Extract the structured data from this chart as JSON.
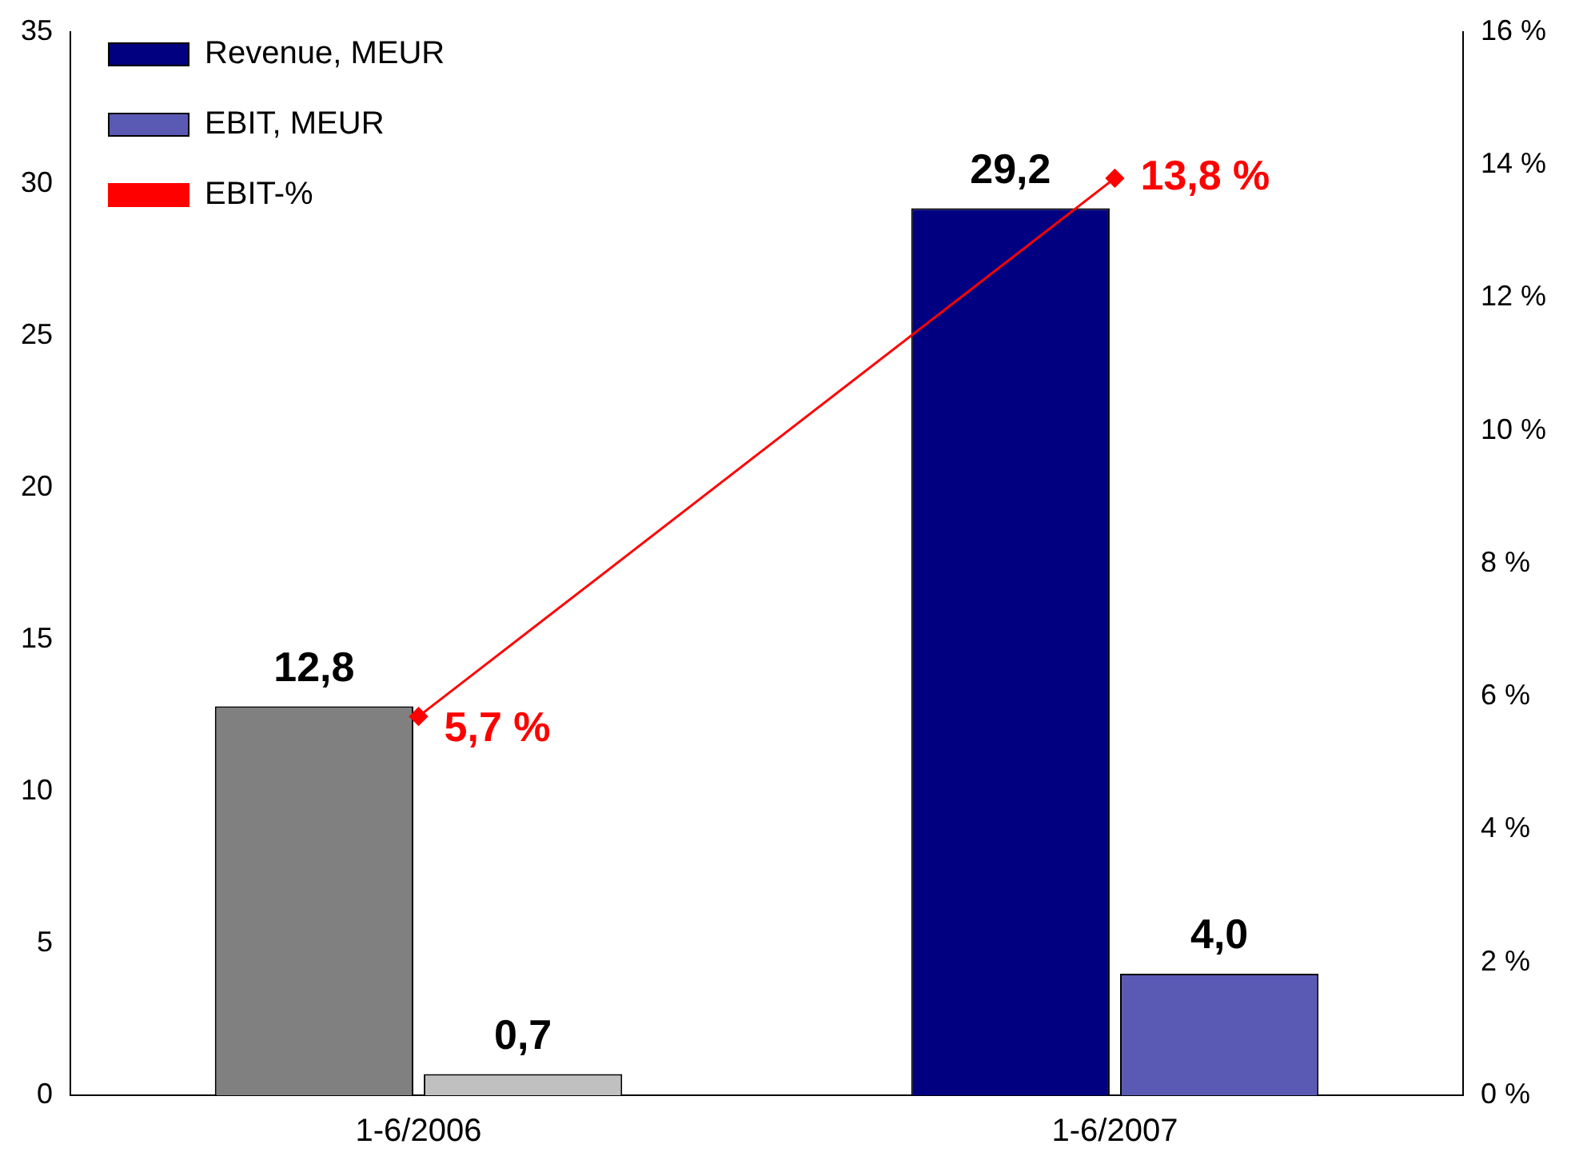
{
  "chart_data": {
    "type": "bar",
    "categories": [
      "1-6/2006",
      "1-6/2007"
    ],
    "series": [
      {
        "name": "Revenue, MEUR",
        "color": "#000080",
        "colors": [
          "#808080",
          "#000080"
        ],
        "values": [
          12.8,
          29.2
        ],
        "value_labels": [
          "12,8",
          "29,2"
        ]
      },
      {
        "name": "EBIT, MEUR",
        "color": "#5a5ab4",
        "colors": [
          "#c0c0c0",
          "#5a5ab4"
        ],
        "values": [
          0.7,
          4.0
        ],
        "value_labels": [
          "0,7",
          "4,0"
        ]
      },
      {
        "name": "EBIT-%",
        "type": "line",
        "axis": "y2",
        "color": "#ff0000",
        "values": [
          5.7,
          13.8
        ],
        "value_labels": [
          "5,7 %",
          "13,8 %"
        ],
        "marker": "diamond"
      }
    ],
    "ylim": [
      0,
      35
    ],
    "yticks": [
      0,
      5,
      10,
      15,
      20,
      25,
      30,
      35
    ],
    "y2lim": [
      0,
      16
    ],
    "y2ticks": [
      {
        "value": 0,
        "label": "0 %"
      },
      {
        "value": 2,
        "label": "2 %"
      },
      {
        "value": 4,
        "label": "4 %"
      },
      {
        "value": 6,
        "label": "6 %"
      },
      {
        "value": 8,
        "label": "8 %"
      },
      {
        "value": 10,
        "label": "10 %"
      },
      {
        "value": 12,
        "label": "12 %"
      },
      {
        "value": 14,
        "label": "14 %"
      },
      {
        "value": 16,
        "label": "16 %"
      }
    ],
    "grid": false,
    "legend": "top left"
  }
}
